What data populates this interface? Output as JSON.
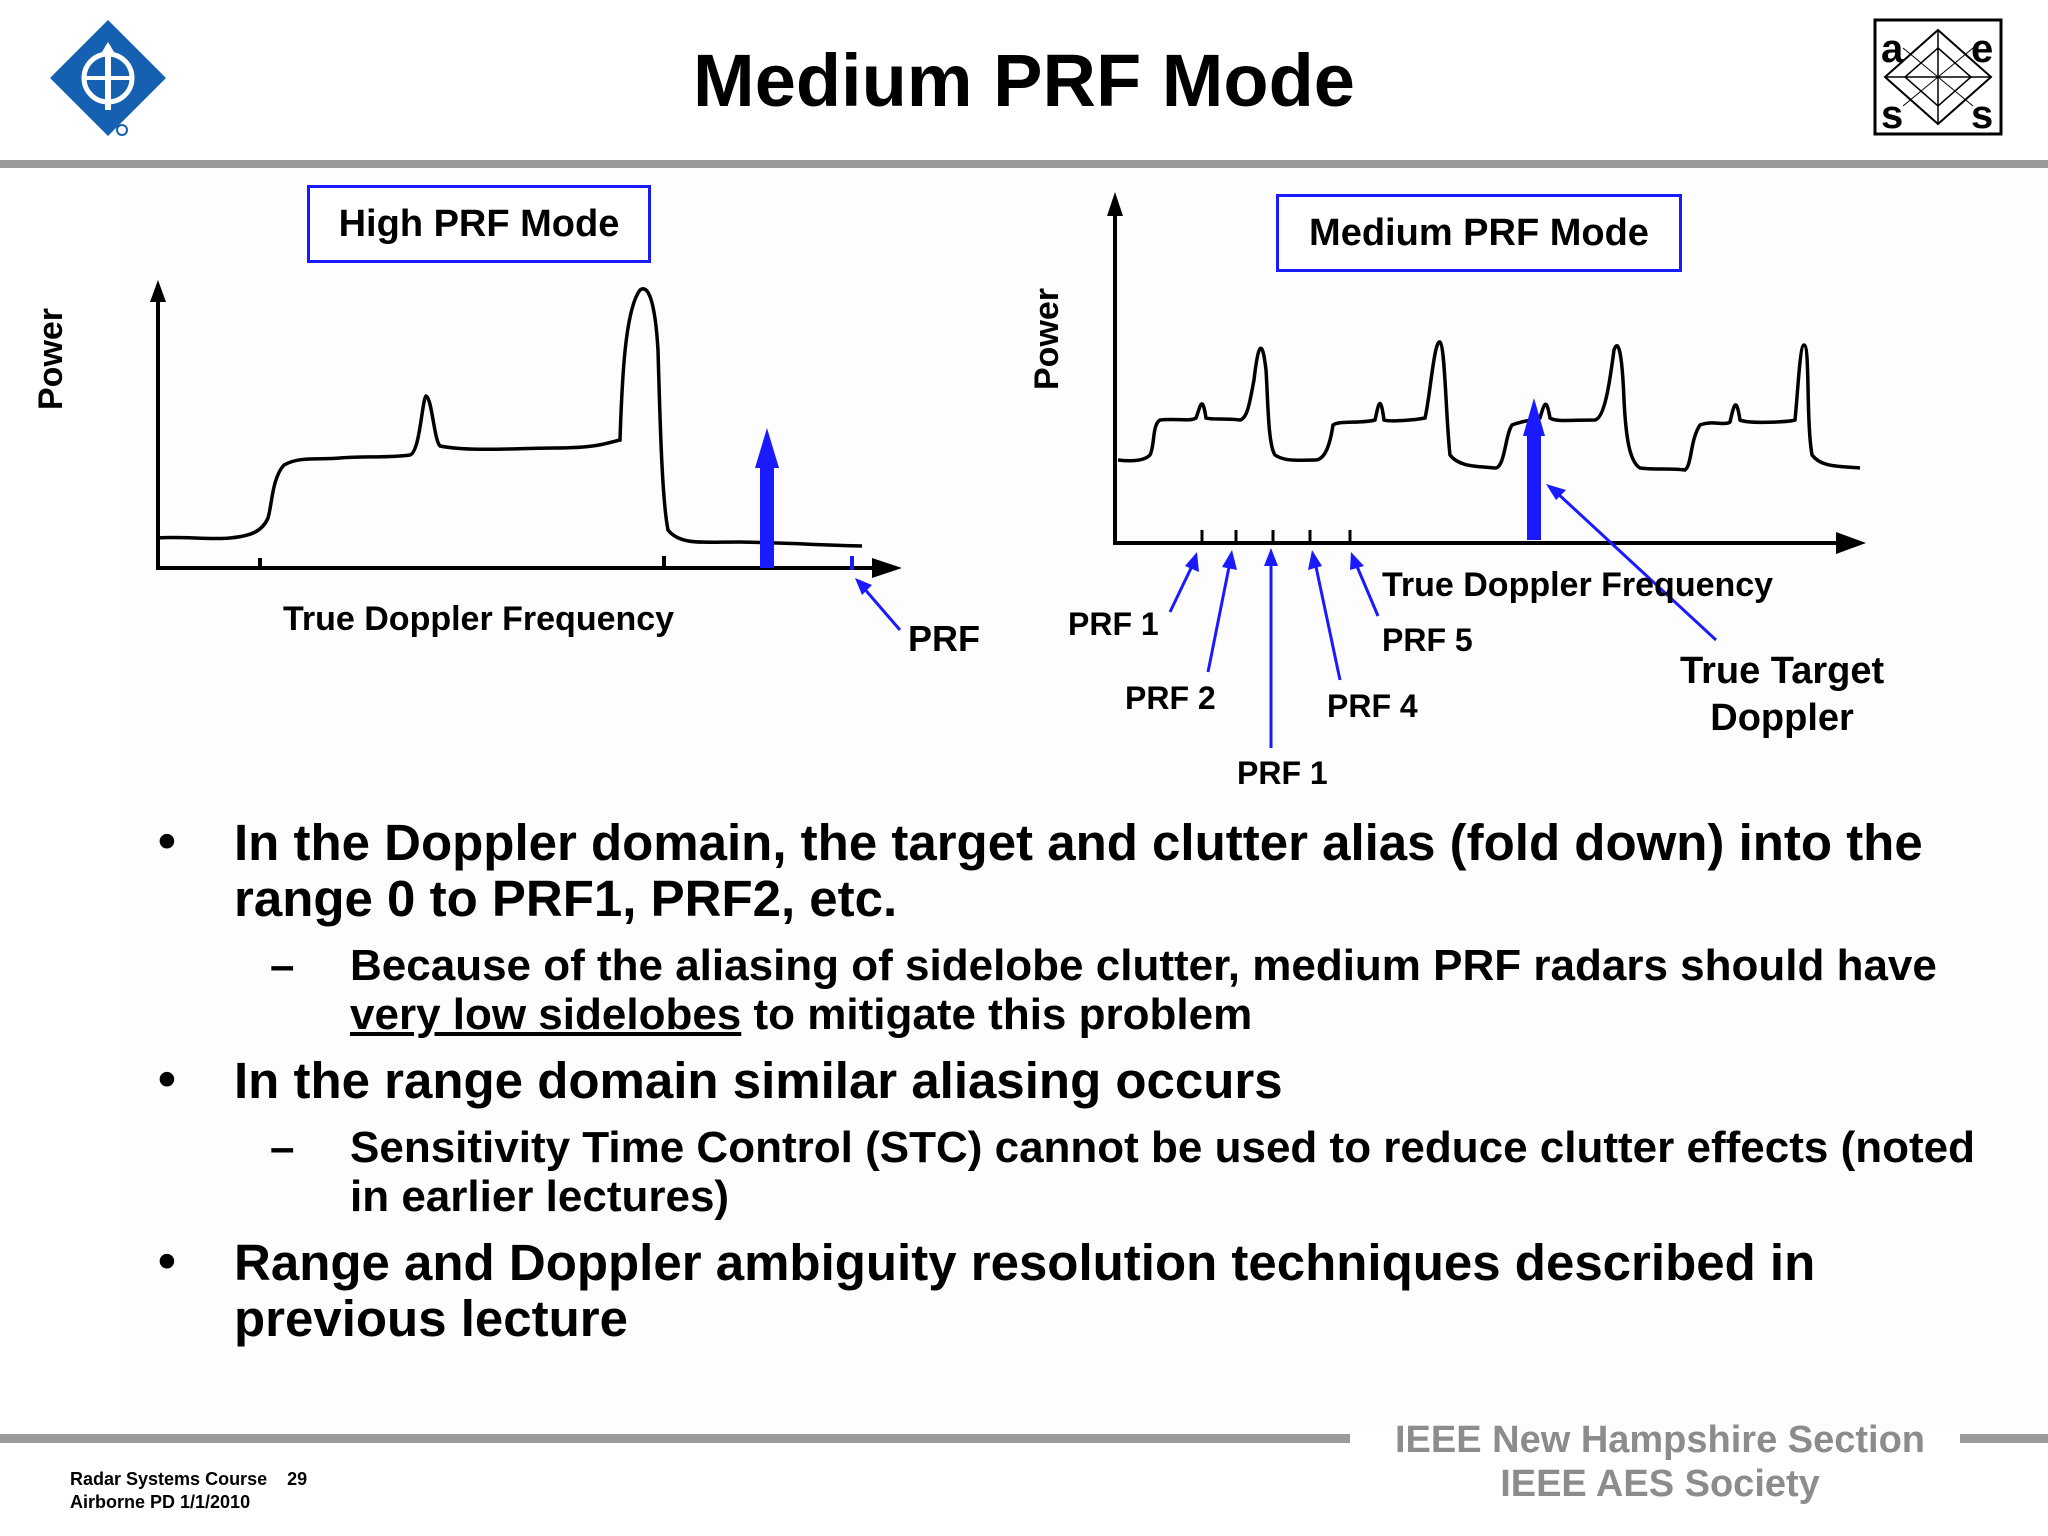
{
  "slide": {
    "title": "Medium PRF Mode"
  },
  "left_panel": {
    "label": "High PRF Mode",
    "ylabel": "Power",
    "xlabel": "True Doppler Frequency",
    "prf_label": "PRF"
  },
  "right_panel": {
    "label": "Medium PRF Mode",
    "ylabel": "Power",
    "xlabel": "True Doppler Frequency",
    "prf_labels": [
      "PRF 1",
      "PRF 2",
      "PRF 1",
      "PRF 4",
      "PRF 5"
    ],
    "target_label_line1": "True Target",
    "target_label_line2": "Doppler"
  },
  "bullets": {
    "b1": "In the Doppler domain, the target and clutter alias (fold down) into the range 0 to PRF1, PRF2, etc.",
    "b1_sub_pre": "Because of the aliasing of sidelobe clutter, medium PRF radars should have ",
    "b1_sub_ul": "very low sidelobes",
    "b1_sub_post": " to mitigate this problem",
    "b2": "In the range domain similar aliasing occurs",
    "b2_sub": "Sensitivity Time Control (STC) cannot be used to reduce clutter effects (noted in earlier lectures)",
    "b3": "Range and Doppler ambiguity resolution techniques described in previous lecture",
    "bullet_mark": "•",
    "dash_mark": "–"
  },
  "footer": {
    "course": "Radar Systems Course",
    "page": "29",
    "subtitle": "Airborne PD  1/1/2010",
    "org1": "IEEE New Hampshire Section",
    "org2": "IEEE AES Society"
  },
  "logos": {
    "aess_letters": [
      "a",
      "e",
      "s",
      "s"
    ],
    "ieee_logo_icon": "ieee-diamond-icon"
  },
  "colors": {
    "accent": "#1a1aff",
    "rule": "#9a9a9a",
    "footer_text": "#8c8c8c"
  }
}
